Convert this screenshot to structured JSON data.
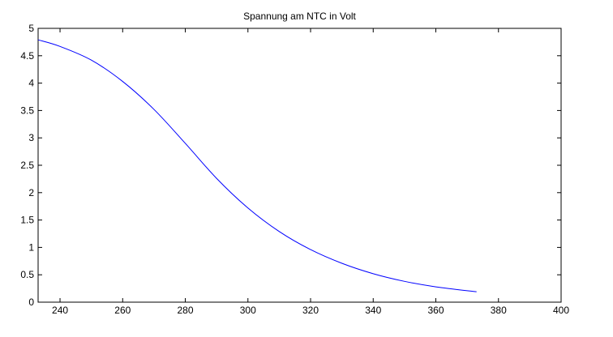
{
  "chart_data": {
    "type": "line",
    "title": "Spannung am NTC in Volt",
    "xlabel": "",
    "ylabel": "",
    "xlim": [
      233,
      400
    ],
    "ylim": [
      0,
      5
    ],
    "xticks": [
      240,
      260,
      280,
      300,
      320,
      340,
      360,
      380,
      400
    ],
    "yticks": [
      0,
      0.5,
      1,
      1.5,
      2,
      2.5,
      3,
      3.5,
      4,
      4.5,
      5
    ],
    "ytick_labels": [
      "0",
      "0.5",
      "1",
      "1.5",
      "2",
      "2.5",
      "3",
      "3.5",
      "4",
      "4.5",
      "5"
    ],
    "grid": false,
    "line_color": "#0000ff",
    "series": [
      {
        "x": [
          233,
          240,
          250,
          260,
          270,
          280,
          290,
          300,
          310,
          320,
          330,
          340,
          350,
          360,
          373
        ],
        "y": [
          4.79,
          4.67,
          4.42,
          4.03,
          3.52,
          2.9,
          2.26,
          1.72,
          1.29,
          0.96,
          0.71,
          0.52,
          0.38,
          0.28,
          0.19
        ]
      }
    ]
  }
}
